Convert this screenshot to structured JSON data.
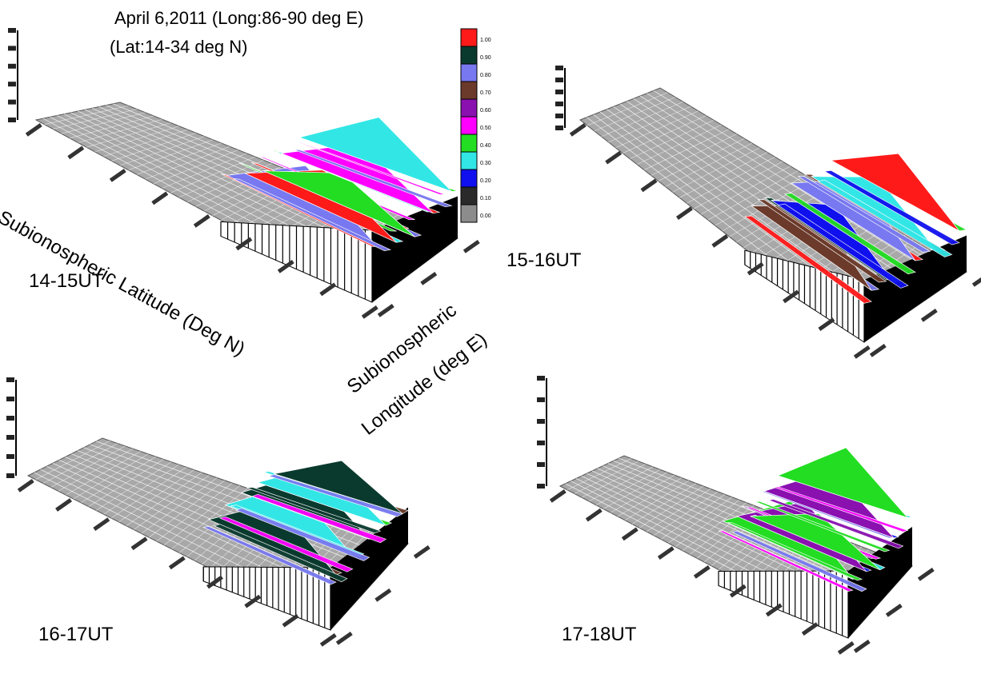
{
  "header": {
    "line1": "April 6,2011 (Long:86-90 deg E)",
    "line2": "(Lat:14-34 deg N)"
  },
  "axis_labels": {
    "latitude": "Subionospheric Latitude (Deg N)",
    "longitude_line1": "Subionospheric",
    "longitude_line2": "Longitude (deg E)"
  },
  "colors": {
    "surface_gray": "#a8a8a8",
    "mesh_line": "#ffffff",
    "wall_black": "#000000"
  },
  "chart_data": {
    "type": "heatmap",
    "colorbar": {
      "ticks": [
        "1.00",
        "0.90",
        "0.80",
        "0.70",
        "0.60",
        "0.50",
        "0.40",
        "0.30",
        "0.20",
        "0.10",
        "0.00"
      ],
      "colors": [
        "#ff1a1a",
        "#0a3a2e",
        "#7878f0",
        "#6b3a2a",
        "#8a10b0",
        "#ff00ff",
        "#22dd22",
        "#33e6e6",
        "#1010ee",
        "#2a2a2a",
        "#8c8c8c"
      ]
    },
    "panels": [
      {
        "label": "14-15UT",
        "peak_colors": [
          "#ff1a1a",
          "#ff00ff",
          "#7878f0",
          "#22dd22",
          "#33e6e6"
        ]
      },
      {
        "label": "15-16UT",
        "peak_colors": [
          "#ff1a1a",
          "#7878f0",
          "#6b3a2a",
          "#0a3a2e",
          "#33e6e6",
          "#1010ee",
          "#22dd22"
        ]
      },
      {
        "label": "16-17UT",
        "peak_colors": [
          "#7878f0",
          "#6b3a2a",
          "#0a3a2e",
          "#ff00ff",
          "#22dd22",
          "#33e6e6"
        ]
      },
      {
        "label": "17-18UT",
        "peak_colors": [
          "#ff00ff",
          "#33e6e6",
          "#22dd22",
          "#7878f0",
          "#1010ee",
          "#8a10b0"
        ]
      }
    ]
  }
}
